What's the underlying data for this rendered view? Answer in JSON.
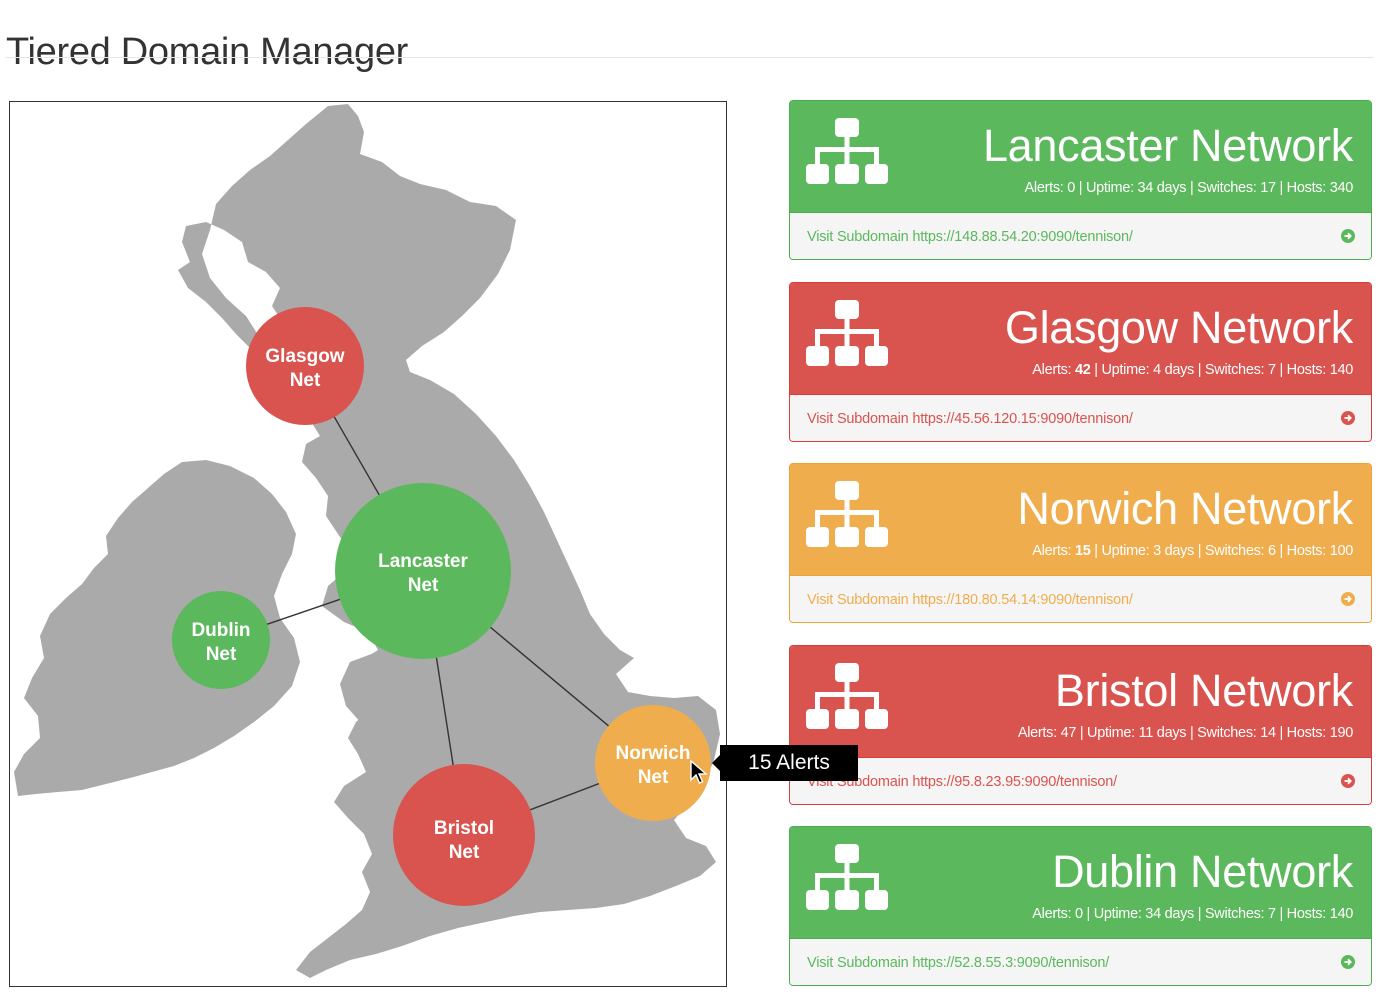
{
  "page": {
    "title": "Tiered Domain Manager"
  },
  "colors": {
    "green": "#5cb85c",
    "red": "#d9534f",
    "orange": "#f0ad4e",
    "land": "#aaaaaa"
  },
  "map": {
    "nodes": [
      {
        "id": "glasgow",
        "line1": "Glasgow",
        "line2": "Net",
        "status": "red"
      },
      {
        "id": "lancaster",
        "line1": "Lancaster",
        "line2": "Net",
        "status": "green"
      },
      {
        "id": "dublin",
        "line1": "Dublin",
        "line2": "Net",
        "status": "green"
      },
      {
        "id": "norwich",
        "line1": "Norwich",
        "line2": "Net",
        "status": "orange"
      },
      {
        "id": "bristol",
        "line1": "Bristol",
        "line2": "Net",
        "status": "red"
      }
    ],
    "links": [
      [
        "glasgow",
        "lancaster"
      ],
      [
        "dublin",
        "lancaster"
      ],
      [
        "lancaster",
        "bristol"
      ],
      [
        "lancaster",
        "norwich"
      ],
      [
        "bristol",
        "norwich"
      ]
    ],
    "tooltip": "15 Alerts"
  },
  "panels": [
    {
      "name": "Lancaster Network",
      "status": "green",
      "alerts_label": "Alerts: ",
      "alerts": "0",
      "alerts_bold": false,
      "rest": " | Uptime: 34 days | Switches: 17 | Hosts: 340",
      "link": "Visit Subdomain https://148.88.54.20:9090/tennison/"
    },
    {
      "name": "Glasgow Network",
      "status": "red",
      "alerts_label": "Alerts: ",
      "alerts": "42",
      "alerts_bold": true,
      "rest": " | Uptime: 4 days | Switches: 7 | Hosts: 140",
      "link": "Visit Subdomain https://45.56.120.15:9090/tennison/"
    },
    {
      "name": "Norwich Network",
      "status": "orange",
      "alerts_label": "Alerts: ",
      "alerts": "15",
      "alerts_bold": true,
      "rest": " | Uptime: 3 days | Switches: 6 | Hosts: 100",
      "link": "Visit Subdomain https://180.80.54.14:9090/tennison/"
    },
    {
      "name": "Bristol Network",
      "status": "red",
      "alerts_label": "Alerts: ",
      "alerts": "47",
      "alerts_bold": false,
      "rest": " | Uptime: 11 days | Switches: 14 | Hosts: 190",
      "link": "Visit Subdomain https://95.8.23.95:9090/tennison/"
    },
    {
      "name": "Dublin Network",
      "status": "green",
      "alerts_label": "Alerts: ",
      "alerts": "0",
      "alerts_bold": false,
      "rest": " | Uptime: 34 days | Switches: 7 | Hosts: 140",
      "link": "Visit Subdomain https://52.8.55.3:9090/tennison/"
    }
  ]
}
